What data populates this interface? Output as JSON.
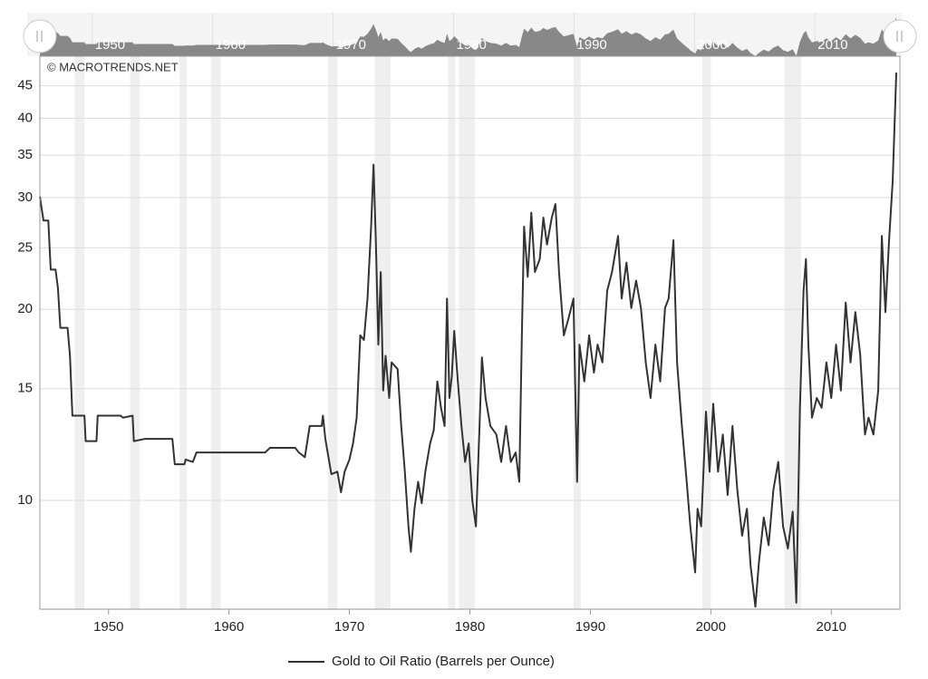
{
  "chart_data": {
    "type": "line",
    "watermark": "© MACROTRENDS.NET",
    "log_y": true,
    "grid": true,
    "xlim": [
      1944.3,
      2015.7
    ],
    "ylim": [
      6.74,
      50.1
    ],
    "xticks": [
      1950,
      1960,
      1970,
      1980,
      1990,
      2000,
      2010
    ],
    "yticks": [
      10,
      15,
      20,
      25,
      30,
      35,
      40,
      45
    ],
    "shaded_periods": [
      [
        1947.2,
        1948.0
      ],
      [
        1951.8,
        1952.6
      ],
      [
        1955.9,
        1956.5
      ],
      [
        1958.5,
        1959.3
      ],
      [
        1968.2,
        1969.0
      ],
      [
        1972.1,
        1973.4
      ],
      [
        1978.2,
        1978.8
      ],
      [
        1979.1,
        1980.4
      ],
      [
        1988.6,
        1989.2
      ],
      [
        1999.3,
        2000.0
      ],
      [
        2006.1,
        2007.5
      ]
    ],
    "x": [
      1944.3,
      1944.6,
      1945.0,
      1945.2,
      1945.6,
      1945.8,
      1946.0,
      1946.6,
      1946.8,
      1947.0,
      1948.0,
      1948.1,
      1949.0,
      1949.1,
      1951.0,
      1951.2,
      1952.0,
      1952.1,
      1953.0,
      1955.3,
      1955.5,
      1956.3,
      1956.4,
      1957.0,
      1957.3,
      1958.0,
      1963.0,
      1963.4,
      1965.5,
      1965.8,
      1966.3,
      1966.7,
      1967.7,
      1967.8,
      1968.0,
      1968.5,
      1969.0,
      1969.3,
      1969.6,
      1970.0,
      1970.3,
      1970.6,
      1970.9,
      1971.2,
      1971.5,
      1971.8,
      1972.0,
      1972.2,
      1972.4,
      1972.6,
      1972.8,
      1973.0,
      1973.3,
      1973.5,
      1974.0,
      1974.3,
      1974.6,
      1974.9,
      1975.1,
      1975.4,
      1975.7,
      1976.0,
      1976.3,
      1976.7,
      1977.0,
      1977.3,
      1977.6,
      1977.9,
      1978.1,
      1978.3,
      1978.5,
      1978.7,
      1979.0,
      1979.3,
      1979.6,
      1979.9,
      1980.2,
      1980.5,
      1980.8,
      1981.0,
      1981.3,
      1981.7,
      1982.2,
      1982.6,
      1983.0,
      1983.4,
      1983.8,
      1984.1,
      1984.3,
      1984.5,
      1984.8,
      1985.1,
      1985.4,
      1985.8,
      1986.1,
      1986.4,
      1986.8,
      1987.1,
      1987.4,
      1987.8,
      1988.2,
      1988.6,
      1988.9,
      1989.1,
      1989.5,
      1989.9,
      1990.3,
      1990.6,
      1991.0,
      1991.4,
      1991.8,
      1992.3,
      1992.6,
      1993.0,
      1993.4,
      1993.8,
      1994.2,
      1994.6,
      1995.0,
      1995.4,
      1995.8,
      1996.2,
      1996.5,
      1996.9,
      1997.2,
      1997.6,
      1998.0,
      1998.3,
      1998.7,
      1998.9,
      1999.2,
      1999.6,
      1999.9,
      2000.2,
      2000.6,
      2001.0,
      2001.4,
      2001.8,
      2002.2,
      2002.6,
      2003.0,
      2003.3,
      2003.7,
      2004.0,
      2004.4,
      2004.8,
      2005.2,
      2005.6,
      2006.0,
      2006.4,
      2006.8,
      2007.1,
      2007.4,
      2007.7,
      2007.9,
      2008.1,
      2008.4,
      2008.8,
      2009.2,
      2009.6,
      2010.0,
      2010.4,
      2010.8,
      2011.2,
      2011.6,
      2012.0,
      2012.4,
      2012.8,
      2013.1,
      2013.5,
      2013.9,
      2014.2,
      2014.5,
      2014.8,
      2015.1,
      2015.4
    ],
    "series": [
      {
        "name": "Gold to Oil Ratio (Barrels per Ounce)",
        "color": "#333333",
        "values": [
          30.1,
          27.6,
          27.6,
          23.1,
          23.1,
          21.6,
          18.7,
          18.7,
          16.9,
          13.6,
          13.6,
          12.4,
          12.4,
          13.6,
          13.6,
          13.5,
          13.6,
          12.4,
          12.5,
          12.5,
          11.4,
          11.4,
          11.6,
          11.5,
          11.9,
          11.9,
          11.9,
          12.1,
          12.1,
          11.9,
          11.7,
          13.1,
          13.1,
          13.6,
          12.5,
          11.0,
          11.1,
          10.3,
          11.1,
          11.6,
          12.3,
          13.5,
          18.2,
          17.9,
          20.8,
          27.0,
          33.8,
          25.3,
          17.6,
          22.9,
          14.9,
          16.9,
          14.5,
          16.5,
          16.1,
          13.1,
          11.1,
          9.1,
          8.3,
          9.7,
          10.7,
          9.9,
          11.1,
          12.3,
          12.9,
          15.4,
          14.0,
          13.1,
          20.8,
          14.5,
          15.7,
          18.5,
          15.4,
          13.1,
          11.5,
          12.3,
          10.0,
          9.1,
          13.1,
          16.8,
          14.5,
          13.1,
          12.7,
          11.5,
          13.1,
          11.5,
          11.9,
          10.7,
          17.6,
          27.0,
          22.5,
          28.4,
          22.9,
          24.0,
          27.9,
          25.3,
          27.9,
          29.3,
          22.9,
          18.2,
          19.4,
          20.8,
          10.7,
          17.6,
          15.4,
          18.2,
          15.9,
          17.6,
          16.5,
          21.4,
          22.9,
          26.1,
          20.8,
          23.7,
          20.1,
          22.2,
          20.1,
          16.5,
          14.5,
          17.6,
          15.4,
          20.1,
          20.8,
          25.7,
          16.5,
          13.1,
          10.7,
          9.1,
          7.7,
          9.7,
          9.1,
          13.8,
          11.1,
          14.2,
          11.1,
          12.7,
          10.2,
          13.1,
          10.4,
          8.8,
          9.7,
          7.9,
          6.8,
          8.0,
          9.4,
          8.5,
          10.4,
          11.5,
          9.1,
          8.4,
          9.6,
          6.9,
          14.0,
          21.4,
          24.0,
          17.6,
          13.5,
          14.5,
          14.0,
          16.5,
          14.5,
          17.6,
          14.9,
          20.5,
          16.5,
          19.8,
          17.0,
          12.7,
          13.5,
          12.7,
          14.9,
          26.1,
          19.8,
          25.7,
          31.8,
          47.2
        ]
      }
    ]
  }
}
